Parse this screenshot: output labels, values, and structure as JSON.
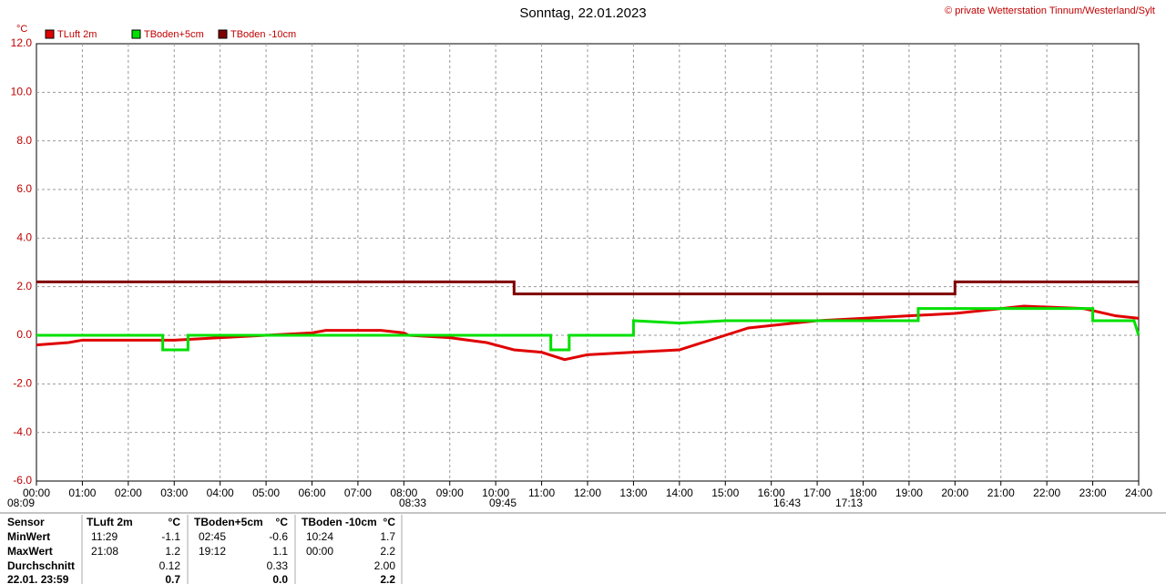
{
  "chart_data": {
    "type": "line",
    "title": "Sonntag, 22.01.2023",
    "credit": "© private Wetterstation Tinnum/Westerland/Sylt",
    "y_label": "°C",
    "xlim": [
      0,
      24
    ],
    "xticks": [
      {
        "value": 0,
        "label": "00:00"
      },
      {
        "value": 1,
        "label": "01:00"
      },
      {
        "value": 2,
        "label": "02:00"
      },
      {
        "value": 3,
        "label": "03:00"
      },
      {
        "value": 4,
        "label": "04:00"
      },
      {
        "value": 5,
        "label": "05:00"
      },
      {
        "value": 6,
        "label": "06:00"
      },
      {
        "value": 7,
        "label": "07:00"
      },
      {
        "value": 8,
        "label": "08:00"
      },
      {
        "value": 9,
        "label": "09:00"
      },
      {
        "value": 10,
        "label": "10:00"
      },
      {
        "value": 11,
        "label": "11:00"
      },
      {
        "value": 12,
        "label": "12:00"
      },
      {
        "value": 13,
        "label": "13:00"
      },
      {
        "value": 14,
        "label": "14:00"
      },
      {
        "value": 15,
        "label": "15:00"
      },
      {
        "value": 16,
        "label": "16:00"
      },
      {
        "value": 17,
        "label": "17:00"
      },
      {
        "value": 18,
        "label": "18:00"
      },
      {
        "value": 19,
        "label": "19:00"
      },
      {
        "value": 20,
        "label": "20:00"
      },
      {
        "value": 21,
        "label": "21:00"
      },
      {
        "value": 22,
        "label": "22:00"
      },
      {
        "value": 23,
        "label": "23:00"
      },
      {
        "value": 24,
        "label": "24:00"
      }
    ],
    "ylim": [
      -6,
      12
    ],
    "yticks": [
      {
        "value": 12,
        "label": "12.0"
      },
      {
        "value": 10,
        "label": "10.0"
      },
      {
        "value": 8,
        "label": "8.0"
      },
      {
        "value": 6,
        "label": "6.0"
      },
      {
        "value": 4,
        "label": "4.0"
      },
      {
        "value": 2,
        "label": "2.0"
      },
      {
        "value": 0,
        "label": "0.0"
      },
      {
        "value": -2,
        "label": "-2.0"
      },
      {
        "value": -4,
        "label": "-4.0"
      },
      {
        "value": -6,
        "label": "-6.0"
      }
    ],
    "grid": true,
    "series": [
      {
        "name": "TLuft 2m",
        "color": "#e00000",
        "x": [
          0,
          0.7,
          1,
          2,
          3,
          4,
          5,
          6,
          6.3,
          7.5,
          8,
          8.1,
          9,
          9.8,
          10.4,
          11,
          11.5,
          12,
          13,
          14,
          14.5,
          15,
          15.5,
          16.5,
          17,
          18,
          19,
          20,
          20.5,
          21.5,
          22.8,
          23.5,
          24
        ],
        "values": [
          -0.4,
          -0.3,
          -0.2,
          -0.2,
          -0.2,
          -0.1,
          0,
          0.1,
          0.2,
          0.2,
          0.1,
          0,
          -0.1,
          -0.3,
          -0.6,
          -0.7,
          -1.0,
          -0.8,
          -0.7,
          -0.6,
          -0.3,
          0,
          0.3,
          0.5,
          0.6,
          0.7,
          0.8,
          0.9,
          1.0,
          1.2,
          1.1,
          0.8,
          0.7
        ]
      },
      {
        "name": "TBoden+5cm",
        "color": "#00e000",
        "x": [
          0,
          2.75,
          2.75,
          3.3,
          3.3,
          11.2,
          11.2,
          11.6,
          11.6,
          13.0,
          13.0,
          14.0,
          15.0,
          19.2,
          19.2,
          23.0,
          23.0,
          23.9,
          24
        ],
        "values": [
          0,
          0,
          -0.6,
          -0.6,
          0,
          0,
          -0.6,
          -0.6,
          0,
          0,
          0.6,
          0.5,
          0.6,
          0.6,
          1.1,
          1.1,
          0.6,
          0.6,
          0
        ]
      },
      {
        "name": "TBoden -10cm",
        "color": "#800000",
        "x": [
          0,
          10.4,
          10.4,
          20.0,
          20.0,
          24
        ],
        "values": [
          2.2,
          2.2,
          1.7,
          1.7,
          2.2,
          2.2
        ]
      }
    ],
    "sun_labels": [
      "08:09",
      "08:33",
      "09:45",
      "16:43",
      "17:13"
    ]
  },
  "table": {
    "header": [
      "Sensor",
      "TLuft 2m",
      "°C",
      "TBoden+5cm",
      "°C",
      "TBoden -10cm",
      "°C"
    ],
    "rows": [
      [
        "MinWert",
        "11:29",
        "-1.1",
        "02:45",
        "-0.6",
        "10:24",
        "1.7"
      ],
      [
        "MaxWert",
        "21:08",
        "1.2",
        "19:12",
        "1.1",
        "00:00",
        "2.2"
      ],
      [
        "Durchschnitt",
        null,
        "0.12",
        null,
        "0.33",
        null,
        "2.00"
      ],
      [
        "22.01. 23:59",
        null,
        "0.7",
        null,
        "0.0",
        null,
        "2.2"
      ]
    ]
  }
}
